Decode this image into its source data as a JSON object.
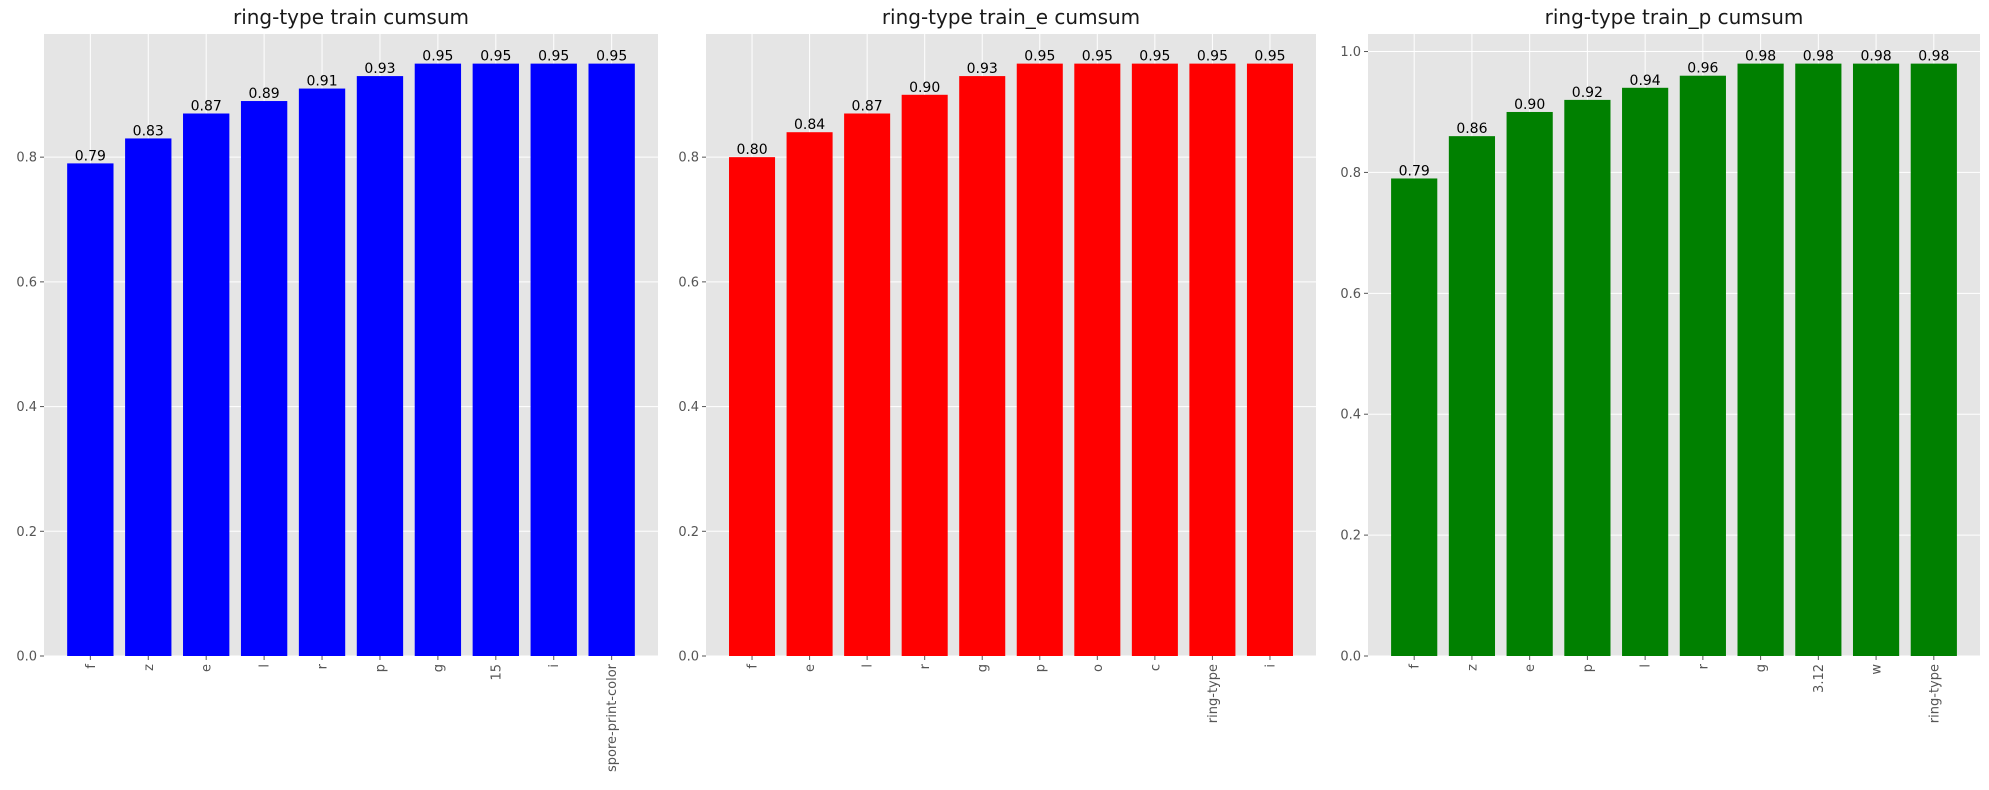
{
  "chart_data": [
    {
      "type": "bar",
      "title": "ring-type train cumsum",
      "categories": [
        "f",
        "z",
        "e",
        "l",
        "r",
        "p",
        "g",
        "15",
        "i",
        "spore-print-color"
      ],
      "values": [
        0.79,
        0.83,
        0.87,
        0.89,
        0.91,
        0.93,
        0.95,
        0.95,
        0.95,
        0.95
      ],
      "value_labels": [
        "0.79",
        "0.83",
        "0.87",
        "0.89",
        "0.91",
        "0.93",
        "0.95",
        "0.95",
        "0.95",
        "0.95"
      ],
      "yticks": [
        "0.0",
        "0.2",
        "0.4",
        "0.6",
        "0.8"
      ],
      "ylim": [
        0,
        0.9975
      ],
      "color": "#0000ff",
      "xlabel": "",
      "ylabel": "",
      "grid": true
    },
    {
      "type": "bar",
      "title": "ring-type train_e cumsum",
      "categories": [
        "f",
        "e",
        "l",
        "r",
        "g",
        "p",
        "o",
        "c",
        "ring-type",
        "i"
      ],
      "values": [
        0.8,
        0.84,
        0.87,
        0.9,
        0.93,
        0.95,
        0.95,
        0.95,
        0.95,
        0.95
      ],
      "value_labels": [
        "0.80",
        "0.84",
        "0.87",
        "0.90",
        "0.93",
        "0.95",
        "0.95",
        "0.95",
        "0.95",
        "0.95"
      ],
      "yticks": [
        "0.0",
        "0.2",
        "0.4",
        "0.6",
        "0.8"
      ],
      "ylim": [
        0,
        0.9975
      ],
      "color": "#ff0000",
      "xlabel": "",
      "ylabel": "",
      "grid": true
    },
    {
      "type": "bar",
      "title": "ring-type train_p cumsum",
      "categories": [
        "f",
        "z",
        "e",
        "p",
        "l",
        "r",
        "g",
        "3.12",
        "w",
        "ring-type"
      ],
      "values": [
        0.79,
        0.86,
        0.9,
        0.92,
        0.94,
        0.96,
        0.98,
        0.98,
        0.98,
        0.98
      ],
      "value_labels": [
        "0.79",
        "0.86",
        "0.90",
        "0.92",
        "0.94",
        "0.96",
        "0.98",
        "0.98",
        "0.98",
        "0.98"
      ],
      "yticks": [
        "0.0",
        "0.2",
        "0.4",
        "0.6",
        "0.8",
        "1.0"
      ],
      "ylim": [
        0,
        1.029
      ],
      "color": "#008000",
      "xlabel": "",
      "ylabel": "",
      "grid": true
    }
  ]
}
